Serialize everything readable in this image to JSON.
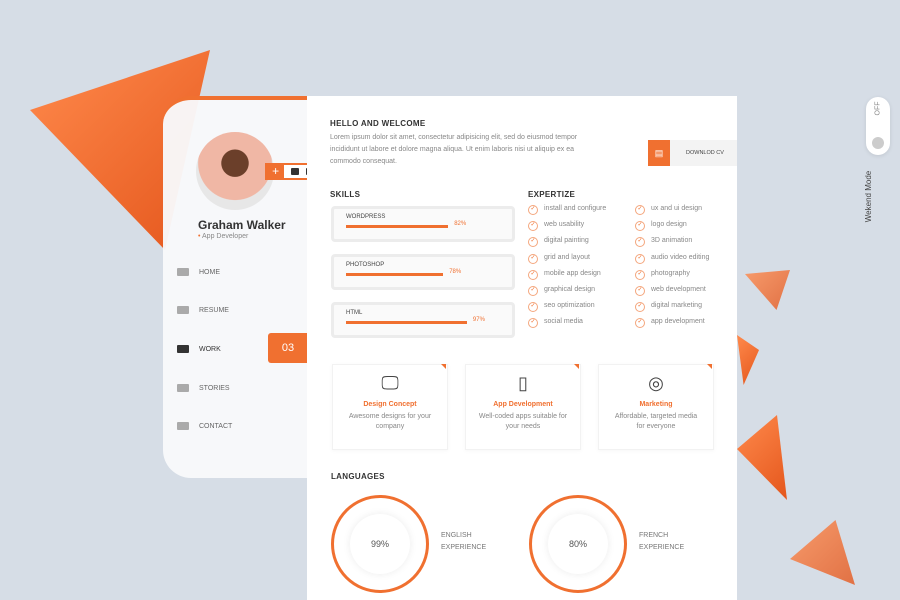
{
  "profile": {
    "name": "Graham Walker",
    "role": "App Developer"
  },
  "social": {
    "plus": "+",
    "icons": [
      "facebook-icon",
      "instagram-icon",
      "twitter-icon",
      "linkedin-icon"
    ]
  },
  "nav": [
    {
      "label": "HOME",
      "icon": "home-icon"
    },
    {
      "label": "RESUME",
      "icon": "id-card-icon"
    },
    {
      "label": "WORK",
      "icon": "briefcase-icon"
    },
    {
      "label": "STORIES",
      "icon": "chat-icon"
    },
    {
      "label": "CONTACT",
      "icon": "keyboard-icon"
    }
  ],
  "active_number": "03",
  "hello": {
    "title": "HELLO AND WELCOME",
    "text": "Lorem ipsum dolor sit amet, consectetur adipisicing elit, sed do eiusmod tempor incididunt ut labore et dolore magna aliqua. Ut enim laboris nisi ut aliquip ex ea commodo consequat."
  },
  "download": {
    "label": "DOWNLOD CV",
    "icon": "document-icon"
  },
  "skills": {
    "title": "SKILLS",
    "items": [
      {
        "label": "WORDPRESS",
        "percent": 82,
        "text": "82%"
      },
      {
        "label": "PHOTOSHOP",
        "percent": 78,
        "text": "78%"
      },
      {
        "label": "HTML",
        "percent": 97,
        "text": "97%"
      }
    ]
  },
  "expertize": {
    "title": "EXPERTIZE",
    "col1": [
      "install and configure",
      "web usability",
      "digital painting",
      "grid and layout",
      "mobile app design",
      "graphical design",
      "seo optimization",
      "social media"
    ],
    "col2": [
      "ux and ui design",
      "logo design",
      "3D animation",
      "audio video editing",
      "photography",
      "web development",
      "digital marketing",
      "app development"
    ]
  },
  "services": [
    {
      "title": "Design Concept",
      "desc": "Awesome designs for your company",
      "icon": "monitor-icon"
    },
    {
      "title": "App Development",
      "desc": "Well-coded apps suitable for your needs",
      "icon": "smartphone-icon"
    },
    {
      "title": "Marketing",
      "desc": "Affordable, targeted media for everyone",
      "icon": "lifebuoy-icon"
    }
  ],
  "languages": {
    "title": "LANGUAGES",
    "items": [
      {
        "value": "99%",
        "percent": 99,
        "line1": "ENGLISH",
        "line2": "EXPERIENCE"
      },
      {
        "value": "80%",
        "percent": 80,
        "line1": "FRENCH",
        "line2": "EXPERIENCE"
      }
    ]
  },
  "toggle": {
    "state": "OFF",
    "label": "Wekend Mode"
  },
  "colors": {
    "accent": "#f07030",
    "background": "#d6dde6"
  }
}
